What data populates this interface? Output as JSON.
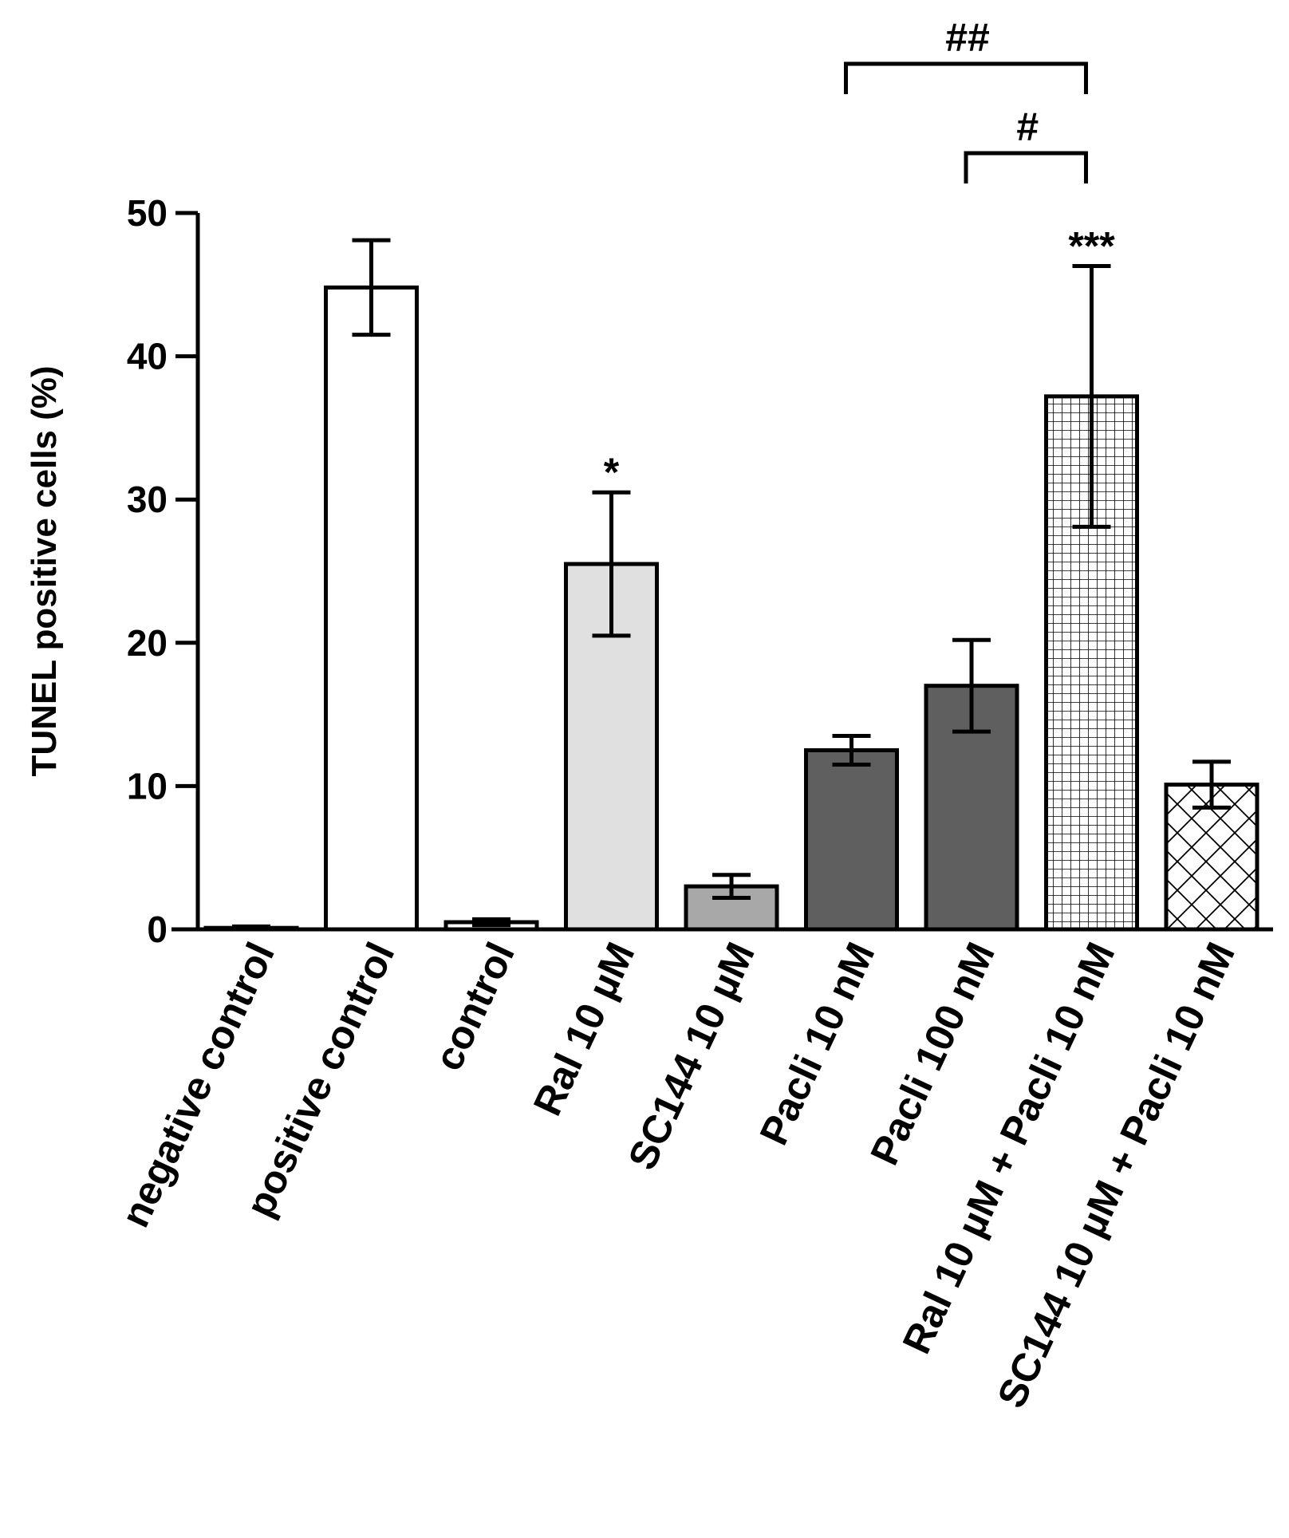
{
  "chart_data": {
    "type": "bar",
    "ylabel": "TUNEL positive cells (%)",
    "xlabel": "",
    "ylim": [
      0,
      50
    ],
    "yticks": [
      0,
      10,
      20,
      30,
      40,
      50
    ],
    "grid": false,
    "categories": [
      "negative control",
      "positive control",
      "control",
      "Ral 10 µM",
      "SC144 10 µM",
      "Pacli 10 nM",
      "Pacli 100 nM",
      "Ral 10 µM + Pacli 10 nM",
      "SC144 10 µM + Pacli 10 nM"
    ],
    "values": [
      0.1,
      44.8,
      0.5,
      25.5,
      3.0,
      12.5,
      17.0,
      37.2,
      10.1
    ],
    "errors": [
      0.1,
      3.3,
      0.2,
      5.0,
      0.8,
      1.0,
      3.2,
      9.1,
      1.6
    ],
    "fills": [
      {
        "color": "#ffffff",
        "pattern": "solid"
      },
      {
        "color": "#ffffff",
        "pattern": "solid"
      },
      {
        "color": "#ffffff",
        "pattern": "solid"
      },
      {
        "color": "#e0e0e0",
        "pattern": "solid"
      },
      {
        "color": "#a8a8a8",
        "pattern": "solid"
      },
      {
        "color": "#5f5f5f",
        "pattern": "solid"
      },
      {
        "color": "#5f5f5f",
        "pattern": "solid"
      },
      {
        "color": "#ffffff",
        "pattern": "grid"
      },
      {
        "color": "#ffffff",
        "pattern": "crosshatch"
      }
    ],
    "bar_annotations": [
      {
        "category_index": 3,
        "text": "*"
      },
      {
        "category_index": 7,
        "text": "***"
      }
    ],
    "comparisons": [
      {
        "from_index": 5,
        "to_index": 7,
        "text": "##"
      },
      {
        "from_index": 6,
        "to_index": 7,
        "text": "#"
      }
    ]
  }
}
